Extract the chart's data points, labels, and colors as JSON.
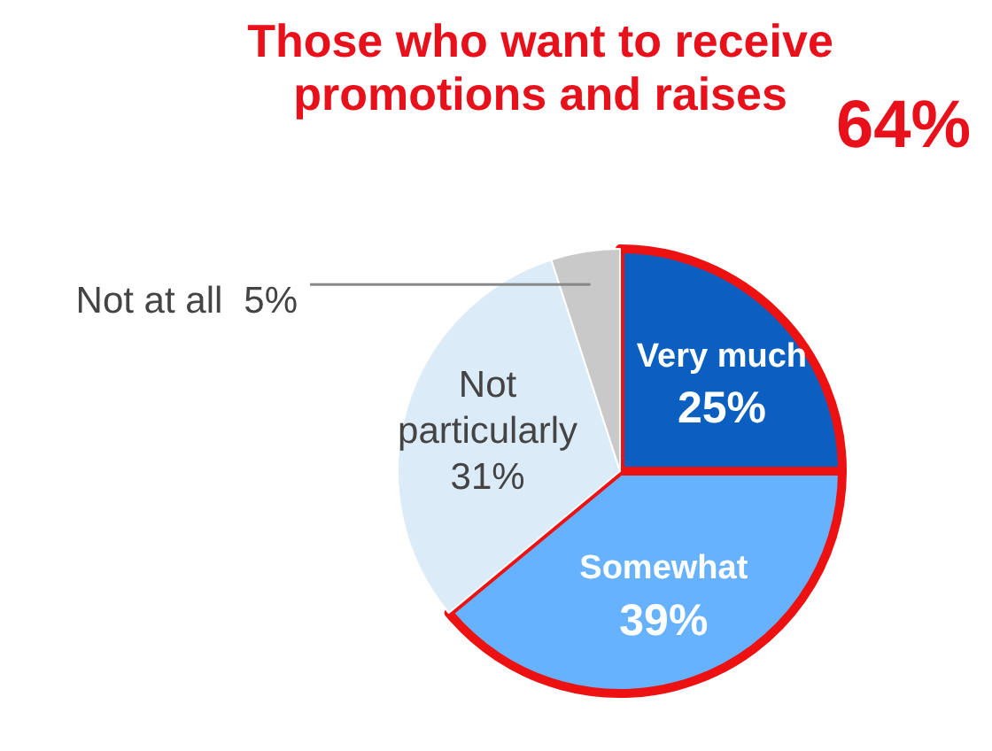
{
  "chart_data": {
    "type": "pie",
    "title": "Those who want to receive promotions and raises",
    "categories": [
      "Very much",
      "Somewhat",
      "Not particularly",
      "Not at all"
    ],
    "values": [
      25,
      39,
      31,
      5
    ],
    "colors": [
      "#0a5fc0",
      "#66b2ff",
      "#dcebf8",
      "#c9c9c9"
    ],
    "value_labels": [
      "25%",
      "39%",
      "31%",
      "5%"
    ],
    "legend": false,
    "annotations": [
      "64%"
    ]
  }
}
